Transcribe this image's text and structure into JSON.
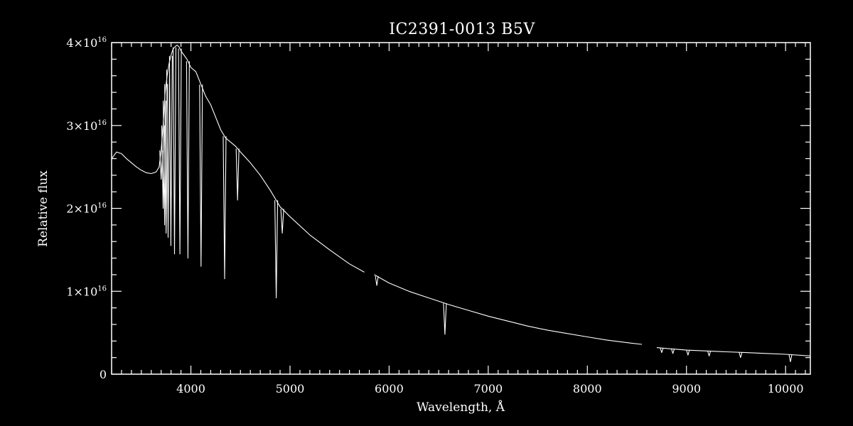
{
  "chart_data": {
    "type": "line",
    "title": "IC2391-0013   B5V",
    "xlabel": "Wavelength, Å",
    "ylabel": "Relative flux",
    "xlim": [
      3200,
      10250
    ],
    "ylim": [
      0,
      4e+16
    ],
    "x_major_ticks": [
      4000,
      5000,
      6000,
      7000,
      8000,
      9000,
      10000
    ],
    "x_minor_step": 100,
    "y_major_ticks": [
      0,
      1e+16,
      2e+16,
      3e+16,
      4e+16
    ],
    "y_minor_step": 2000000000000000.0,
    "y_tick_labels": [
      {
        "value": 0,
        "mantissa": "0",
        "exp": ""
      },
      {
        "value": 1e+16,
        "mantissa": "1×10",
        "exp": "16"
      },
      {
        "value": 2e+16,
        "mantissa": "2×10",
        "exp": "16"
      },
      {
        "value": 3e+16,
        "mantissa": "3×10",
        "exp": "16"
      },
      {
        "value": 4e+16,
        "mantissa": "4×10",
        "exp": "16"
      }
    ],
    "x_tick_labels": [
      "4000",
      "5000",
      "6000",
      "7000",
      "8000",
      "9000",
      "10000"
    ],
    "grid": false,
    "line_color": "#ffffff",
    "background_color": "#000000",
    "series": [
      {
        "segments": [
          [
            [
              3200,
              2.6e+16
            ],
            [
              3250,
              2.68e+16
            ],
            [
              3300,
              2.66e+16
            ],
            [
              3350,
              2.6e+16
            ],
            [
              3400,
              2.55e+16
            ],
            [
              3450,
              2.5e+16
            ],
            [
              3500,
              2.46e+16
            ],
            [
              3550,
              2.43e+16
            ],
            [
              3600,
              2.42e+16
            ],
            [
              3650,
              2.44e+16
            ],
            [
              3680,
              2.5e+16
            ],
            [
              3700,
              2.7e+16
            ],
            [
              3720,
              3e+16
            ],
            [
              3740,
              3.4e+16
            ],
            [
              3760,
              3.6e+16
            ],
            [
              3780,
              3.75e+16
            ],
            [
              3800,
              3.85e+16
            ],
            [
              3820,
              3.92e+16
            ],
            [
              3840,
              3.95e+16
            ],
            [
              3860,
              3.97e+16
            ],
            [
              3880,
              3.95e+16
            ],
            [
              3900,
              3.9e+16
            ],
            [
              3930,
              3.85e+16
            ],
            [
              3960,
              3.8e+16
            ],
            [
              4000,
              3.7e+16
            ],
            [
              4050,
              3.65e+16
            ],
            [
              4100,
              3.5e+16
            ],
            [
              4150,
              3.35e+16
            ],
            [
              4200,
              3.25e+16
            ],
            [
              4250,
              3.1e+16
            ],
            [
              4300,
              2.95e+16
            ],
            [
              4350,
              2.85e+16
            ],
            [
              4400,
              2.8e+16
            ],
            [
              4450,
              2.75e+16
            ],
            [
              4500,
              2.68e+16
            ],
            [
              4600,
              2.55e+16
            ],
            [
              4700,
              2.4e+16
            ],
            [
              4800,
              2.22e+16
            ],
            [
              4900,
              2.02e+16
            ],
            [
              5000,
              1.9e+16
            ],
            [
              5200,
              1.68e+16
            ],
            [
              5400,
              1.5e+16
            ],
            [
              5600,
              1.33e+16
            ],
            [
              5750,
              1.23e+16
            ]
          ],
          [
            [
              5850,
              1.2e+16
            ],
            [
              6000,
              1.1e+16
            ],
            [
              6200,
              1e+16
            ],
            [
              6400,
              9200000000000000.0
            ],
            [
              6600,
              8400000000000000.0
            ],
            [
              6800,
              7700000000000000.0
            ],
            [
              7000,
              7000000000000000.0
            ],
            [
              7200,
              6400000000000000.0
            ],
            [
              7400,
              5800000000000000.0
            ],
            [
              7600,
              5300000000000000.0
            ],
            [
              7800,
              4900000000000000.0
            ],
            [
              8000,
              4500000000000000.0
            ],
            [
              8200,
              4100000000000000.0
            ],
            [
              8400,
              3800000000000000.0
            ],
            [
              8550,
              3600000000000000.0
            ]
          ],
          [
            [
              8700,
              3200000000000000.0
            ],
            [
              8800,
              3100000000000000.0
            ],
            [
              9000,
              2900000000000000.0
            ],
            [
              9200,
              2800000000000000.0
            ],
            [
              9400,
              2700000000000000.0
            ],
            [
              9600,
              2600000000000000.0
            ],
            [
              9800,
              2500000000000000.0
            ],
            [
              10000,
              2400000000000000.0
            ],
            [
              10250,
              2200000000000000.0
            ]
          ]
        ],
        "absorption_lines": [
          {
            "x": 3700,
            "y": 2.35e+16
          },
          {
            "x": 3720,
            "y": 2e+16
          },
          {
            "x": 3735,
            "y": 1.8e+16
          },
          {
            "x": 3750,
            "y": 1.7e+16
          },
          {
            "x": 3770,
            "y": 1.65e+16
          },
          {
            "x": 3798,
            "y": 1.55e+16
          },
          {
            "x": 3835,
            "y": 1.45e+16
          },
          {
            "x": 3889,
            "y": 1.45e+16
          },
          {
            "x": 3970,
            "y": 1.4e+16
          },
          {
            "x": 4102,
            "y": 1.3e+16
          },
          {
            "x": 4340,
            "y": 1.15e+16
          },
          {
            "x": 4471,
            "y": 2.1e+16
          },
          {
            "x": 4861,
            "y": 9200000000000000.0
          },
          {
            "x": 4922,
            "y": 1.7e+16
          },
          {
            "x": 5876,
            "y": 1.07e+16
          },
          {
            "x": 6563,
            "y": 4800000000000000.0
          },
          {
            "x": 8750,
            "y": 2600000000000000.0
          },
          {
            "x": 8863,
            "y": 2500000000000000.0
          },
          {
            "x": 9015,
            "y": 2300000000000000.0
          },
          {
            "x": 9229,
            "y": 2200000000000000.0
          },
          {
            "x": 9546,
            "y": 2000000000000000.0
          },
          {
            "x": 10049,
            "y": 1500000000000000.0
          }
        ]
      }
    ]
  }
}
